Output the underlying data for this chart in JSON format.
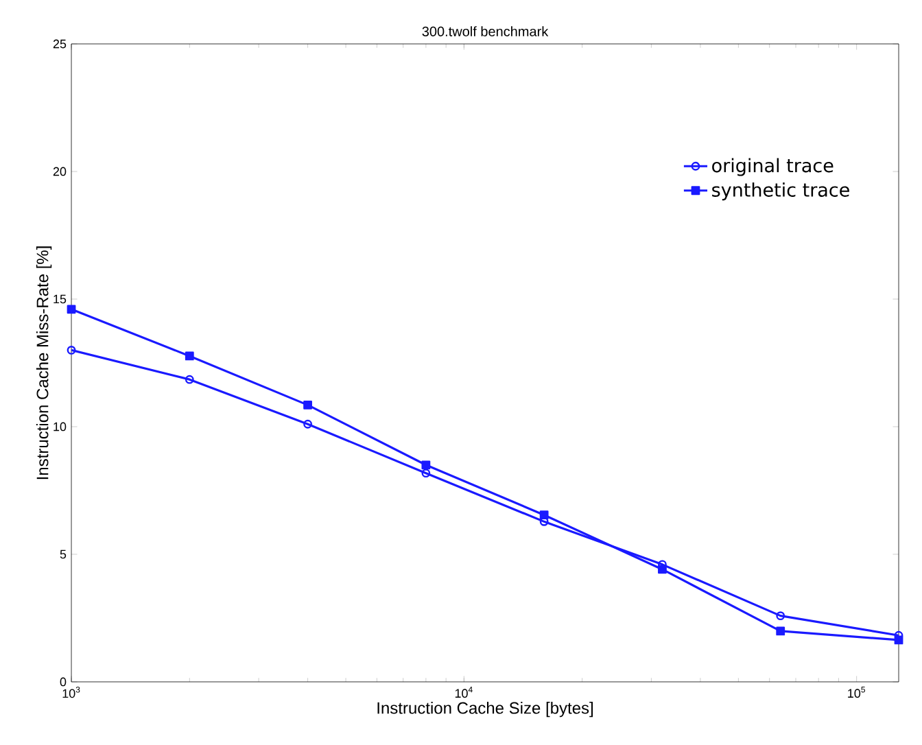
{
  "chart_data": {
    "type": "line",
    "title": "300.twolf benchmark",
    "xlabel": "Instruction Cache Size [bytes]",
    "ylabel": "Instruction Cache Miss-Rate [%]",
    "x": [
      1000,
      2000,
      4000,
      8000,
      16000,
      32000,
      64000,
      128000
    ],
    "series": [
      {
        "name": "original trace",
        "color": "#1a1aff",
        "marker": "circle",
        "values": [
          13.0,
          11.85,
          10.1,
          8.18,
          6.28,
          4.6,
          2.59,
          1.82
        ]
      },
      {
        "name": "synthetic trace",
        "color": "#1a1aff",
        "marker": "square",
        "values": [
          14.6,
          12.77,
          10.85,
          8.5,
          6.54,
          4.41,
          1.99,
          1.64
        ]
      }
    ],
    "log": "x",
    "xlim": [
      1000,
      128000
    ],
    "ylim": [
      0,
      25
    ],
    "xticks": [
      {
        "value": 1000,
        "label": "10$^{3}$"
      },
      {
        "value": 10000,
        "label": "10$^{4}$"
      },
      {
        "value": 100000,
        "label": "10$^{5}$"
      }
    ],
    "yticks": [
      0,
      5,
      10,
      15,
      20,
      25
    ],
    "grid": false,
    "legend": "top right",
    "line_style": "solid"
  }
}
